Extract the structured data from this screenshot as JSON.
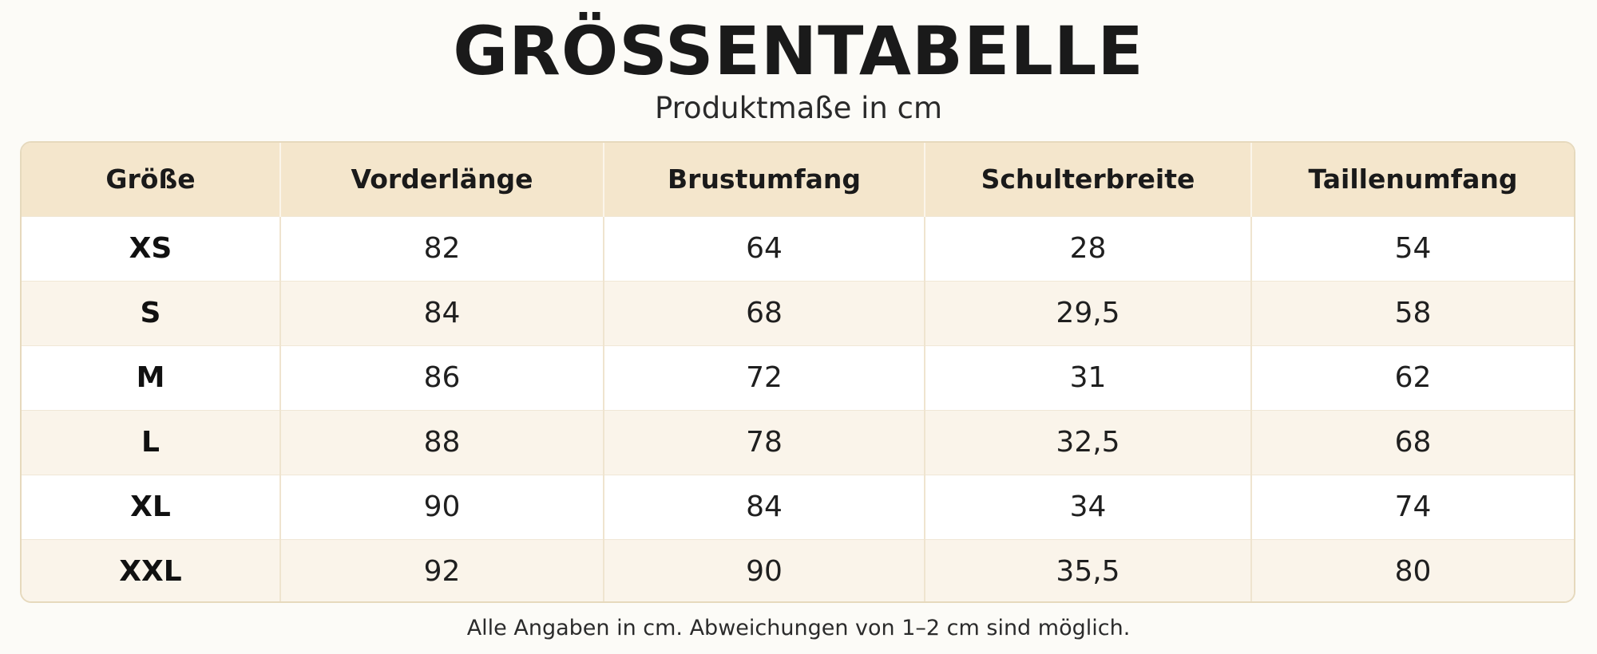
{
  "header": {
    "title": "GRÖSSENTABELLE",
    "subtitle": "Produktmaße in cm"
  },
  "table": {
    "columns": [
      "Größe",
      "Vorderlänge",
      "Brustumfang",
      "Schulterbreite",
      "Taillenumfang"
    ],
    "rows": [
      [
        "XS",
        "82",
        "64",
        "28",
        "54"
      ],
      [
        "S",
        "84",
        "68",
        "29,5",
        "58"
      ],
      [
        "M",
        "86",
        "72",
        "31",
        "62"
      ],
      [
        "L",
        "88",
        "78",
        "32,5",
        "68"
      ],
      [
        "XL",
        "90",
        "84",
        "34",
        "74"
      ],
      [
        "XXL",
        "92",
        "90",
        "35,5",
        "80"
      ]
    ]
  },
  "footer": {
    "note": "Alle Angaben in cm. Abweichungen von 1–2 cm sind möglich."
  },
  "colors": {
    "page_background": "#fcfbf7",
    "header_row": "#f4e6cc",
    "alternate_row": "#faf4ea",
    "border": "#e6d9bd"
  }
}
